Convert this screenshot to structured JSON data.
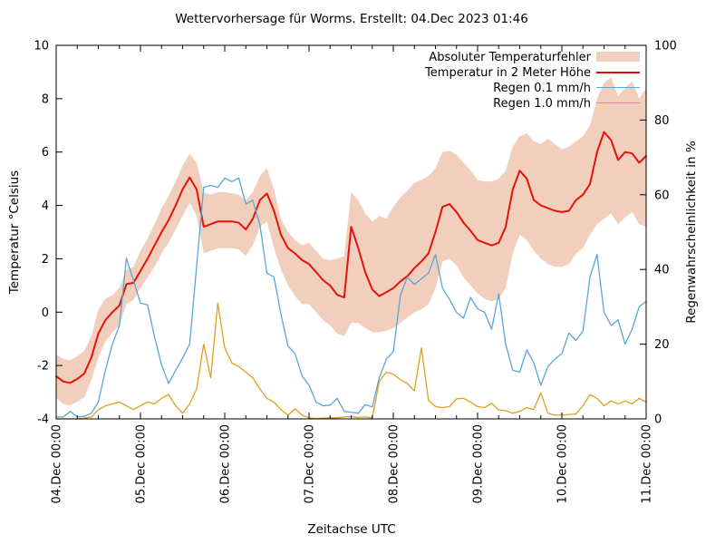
{
  "title": "Wettervorhersage für Worms. Erstellt: 04.Dec 2023 01:46",
  "axes": {
    "left_label": "Temperatur °Celsius",
    "right_label": "Regenwahrscheinlichkeit in %",
    "bottom_label": "Zeitachse UTC"
  },
  "legend": {
    "items": [
      {
        "label": "Absoluter Temperaturfehler",
        "type": "band",
        "color": "#f2cfbd"
      },
      {
        "label": "Temperatur in 2 Meter Höhe",
        "type": "line",
        "color": "#e3120b"
      },
      {
        "label": "Regen 0.1 mm/h",
        "type": "line",
        "color": "#58a6d8"
      },
      {
        "label": "Regen 1.0 mm/h",
        "type": "line",
        "color": "#df9f1f"
      }
    ]
  },
  "chart_data": {
    "type": "line",
    "title": "Wettervorhersage für Worms. Erstellt: 04.Dec 2023 01:46",
    "xlabel": "Zeitachse UTC",
    "ylabel_left": "Temperatur °Celsius",
    "ylabel_right": "Regenwahrscheinlichkeit in %",
    "x_unit": "hours since 04.Dec 00:00 UTC",
    "x_range_hours": [
      0,
      168
    ],
    "x_step_hours": 2,
    "x_tick_hours": [
      0,
      24,
      48,
      72,
      96,
      120,
      144,
      168
    ],
    "x_tick_labels": [
      "04.Dec 00:00",
      "05.Dec 00:00",
      "06.Dec 00:00",
      "07.Dec 00:00",
      "08.Dec 00:00",
      "09.Dec 00:00",
      "10.Dec 00:00",
      "11.Dec 00:00"
    ],
    "x_minor_tick_step_hours": 6,
    "ylim_left": [
      -4,
      10
    ],
    "yticks_left": [
      -4,
      -2,
      0,
      2,
      4,
      6,
      8,
      10
    ],
    "ylim_right": [
      0,
      100
    ],
    "yticks_right": [
      0,
      20,
      40,
      60,
      80,
      100
    ],
    "grid": false,
    "legend_position": "top-right-inside",
    "series": [
      {
        "name": "Absoluter Temperaturfehler",
        "type": "band",
        "axis": "left",
        "color": "#f2cfbd",
        "upper": [
          -1.6,
          -1.75,
          -1.8,
          -1.65,
          -1.45,
          -0.9,
          0.1,
          0.5,
          0.65,
          0.9,
          1.6,
          1.7,
          2.3,
          2.75,
          3.3,
          3.9,
          4.35,
          4.9,
          5.5,
          5.95,
          5.6,
          4.5,
          4.4,
          4.5,
          4.5,
          4.45,
          4.4,
          4.2,
          4.5,
          5.1,
          5.4,
          4.6,
          3.5,
          3.0,
          2.7,
          2.5,
          2.6,
          2.3,
          2.0,
          1.95,
          2.0,
          2.1,
          4.5,
          4.2,
          3.7,
          3.4,
          3.6,
          3.5,
          3.95,
          4.3,
          4.55,
          4.85,
          4.95,
          5.1,
          5.4,
          6.0,
          6.05,
          5.9,
          5.6,
          5.3,
          4.95,
          4.9,
          4.9,
          5.0,
          5.3,
          6.2,
          6.6,
          6.7,
          6.4,
          6.3,
          6.5,
          6.3,
          6.1,
          6.2,
          6.4,
          6.6,
          7.0,
          8.0,
          8.6,
          8.8,
          8.1,
          8.4,
          8.65,
          8.0,
          8.4
        ],
        "lower": [
          -3.2,
          -3.45,
          -3.5,
          -3.35,
          -3.2,
          -2.55,
          -1.7,
          -1.1,
          -0.75,
          -0.5,
          0.3,
          0.45,
          0.9,
          1.3,
          1.7,
          2.2,
          2.6,
          3.1,
          3.6,
          4.1,
          3.6,
          2.2,
          2.3,
          2.4,
          2.4,
          2.4,
          2.35,
          2.1,
          2.5,
          3.2,
          3.4,
          2.4,
          1.6,
          1.0,
          0.6,
          0.3,
          0.3,
          0.0,
          -0.3,
          -0.5,
          -0.8,
          -0.9,
          -0.4,
          -0.4,
          -0.6,
          -0.75,
          -0.75,
          -0.7,
          -0.6,
          -0.4,
          -0.2,
          0.0,
          0.1,
          0.3,
          0.9,
          1.9,
          2.0,
          1.75,
          1.3,
          1.0,
          0.7,
          0.5,
          0.4,
          0.5,
          0.9,
          2.2,
          2.9,
          2.7,
          2.3,
          2.0,
          1.8,
          1.7,
          1.7,
          1.8,
          2.2,
          2.4,
          2.9,
          3.3,
          3.5,
          3.7,
          3.3,
          3.55,
          3.75,
          3.3,
          3.2
        ]
      },
      {
        "name": "Temperatur in 2 Meter Höhe",
        "type": "line",
        "axis": "left",
        "color": "#e3120b",
        "width": 2,
        "values": [
          -2.4,
          -2.6,
          -2.65,
          -2.5,
          -2.3,
          -1.7,
          -0.8,
          -0.3,
          0.0,
          0.25,
          1.05,
          1.1,
          1.55,
          2.0,
          2.5,
          3.0,
          3.45,
          4.0,
          4.6,
          5.05,
          4.6,
          3.2,
          3.3,
          3.4,
          3.4,
          3.4,
          3.35,
          3.1,
          3.5,
          4.2,
          4.45,
          3.8,
          2.9,
          2.4,
          2.2,
          1.95,
          1.8,
          1.5,
          1.2,
          1.0,
          0.65,
          0.55,
          3.2,
          2.4,
          1.5,
          0.85,
          0.6,
          0.75,
          0.9,
          1.15,
          1.35,
          1.65,
          1.9,
          2.2,
          3.0,
          3.95,
          4.05,
          3.75,
          3.35,
          3.05,
          2.7,
          2.6,
          2.5,
          2.6,
          3.2,
          4.6,
          5.3,
          5.0,
          4.2,
          4.0,
          3.9,
          3.8,
          3.75,
          3.8,
          4.2,
          4.4,
          4.8,
          6.0,
          6.75,
          6.45,
          5.7,
          6.0,
          5.95,
          5.6,
          5.85
        ]
      },
      {
        "name": "Regen 0.1 mm/h",
        "type": "line",
        "axis": "right",
        "color": "#58a6d8",
        "width": 1.3,
        "values": [
          0.5,
          0.5,
          2,
          0.5,
          0.7,
          1.5,
          4.5,
          13,
          20,
          25,
          43,
          37,
          31,
          30.5,
          22,
          14.5,
          9.5,
          13,
          16.3,
          20,
          41,
          62,
          62.5,
          62,
          64.5,
          63.5,
          64.5,
          57.5,
          58.5,
          52,
          39,
          38,
          28,
          19.5,
          17.5,
          11.5,
          9,
          4.5,
          3.5,
          3.7,
          5.5,
          2,
          1.8,
          1.5,
          3.8,
          3.2,
          11,
          16,
          18,
          33,
          38,
          36,
          37.5,
          39,
          44,
          35,
          32,
          28.5,
          27,
          32.5,
          29.5,
          28.5,
          24,
          33.5,
          20,
          13,
          12.5,
          18.5,
          15,
          9,
          14,
          16,
          17.5,
          23,
          21,
          23.5,
          38,
          44,
          28.5,
          25,
          26.5,
          20,
          24,
          30,
          31.5
        ]
      },
      {
        "name": "Regen 1.0 mm/h",
        "type": "line",
        "axis": "right",
        "color": "#df9f1f",
        "width": 1.3,
        "values": [
          0,
          0,
          0,
          0,
          0.2,
          0.5,
          2.5,
          3.5,
          4,
          4.5,
          3.5,
          2.5,
          3.5,
          4.5,
          4,
          5.5,
          6.5,
          3.5,
          1.5,
          4,
          8,
          20,
          11,
          31,
          19,
          15,
          14,
          12.5,
          11,
          8,
          5.5,
          4.5,
          2.5,
          1,
          2.7,
          1,
          0.3,
          0.1,
          0.2,
          0.3,
          0.3,
          0.5,
          0.6,
          0.4,
          0.5,
          0.3,
          10,
          12.5,
          12,
          10.5,
          9.5,
          7.5,
          19,
          5,
          3.3,
          3,
          3.3,
          5.4,
          5.5,
          4.5,
          3.3,
          3,
          4.2,
          2.4,
          2.2,
          1.5,
          2,
          3,
          2.5,
          7,
          1.5,
          1,
          1,
          1.2,
          1.3,
          3.5,
          6.5,
          5.5,
          3.5,
          4.8,
          4,
          4.8,
          4,
          5.5,
          4.5
        ]
      }
    ]
  }
}
